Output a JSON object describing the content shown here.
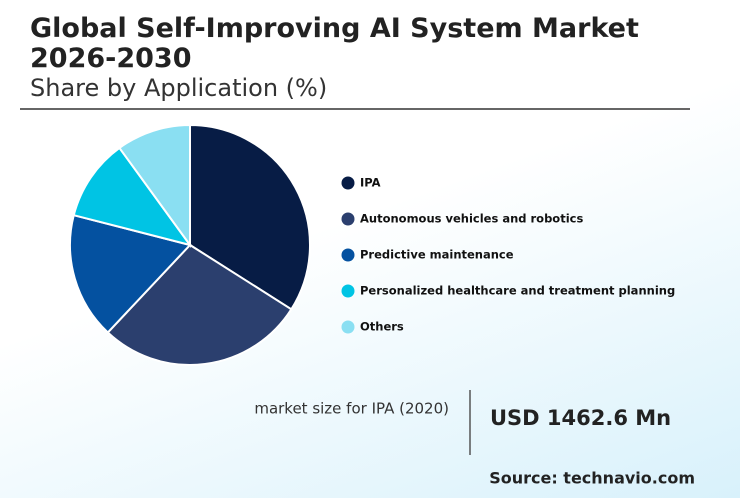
{
  "chart_data": {
    "type": "pie",
    "title": "Global Self-Improving AI System Market 2026-2030",
    "subtitle": "Share by Application (%)",
    "categories": [
      "IPA",
      "Autonomous vehicles and robotics",
      "Predictive maintenance",
      "Personalized healthcare and treatment planning",
      "Others"
    ],
    "values": [
      34,
      28,
      17,
      11,
      10
    ],
    "colors": [
      "#071c45",
      "#2b3f6e",
      "#0451a0",
      "#00c4e4",
      "#8adff2"
    ]
  },
  "callout": {
    "label": "market size for IPA (2020)",
    "value": "USD 1462.6 Mn"
  },
  "source": "Source: technavio.com"
}
